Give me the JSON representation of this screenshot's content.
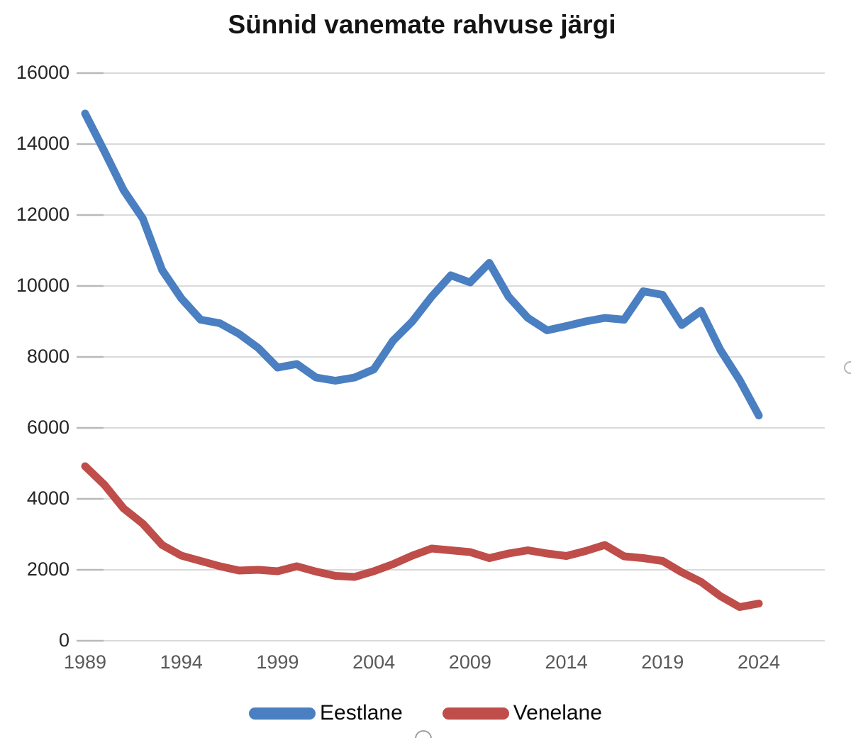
{
  "title": "Sünnid vanemate rahvuse järgi",
  "chart_data": {
    "type": "line",
    "title": "Sünnid vanemate rahvuse järgi",
    "x": [
      1989,
      1990,
      1991,
      1992,
      1993,
      1994,
      1995,
      1996,
      1997,
      1998,
      1999,
      2000,
      2001,
      2002,
      2003,
      2004,
      2005,
      2006,
      2007,
      2008,
      2009,
      2010,
      2011,
      2012,
      2013,
      2014,
      2015,
      2016,
      2017,
      2018,
      2019,
      2020,
      2021,
      2022,
      2023,
      2024
    ],
    "series": [
      {
        "name": "Eestlane",
        "color": "#4a7fc1",
        "values": [
          14860,
          13800,
          12700,
          11900,
          10450,
          9650,
          9050,
          8950,
          8650,
          8250,
          7700,
          7800,
          7420,
          7330,
          7420,
          7650,
          8460,
          9000,
          9700,
          10300,
          10100,
          10650,
          9700,
          9100,
          8750,
          8870,
          9000,
          9100,
          9050,
          9850,
          9750,
          8900,
          9300,
          8200,
          7350,
          6350
        ]
      },
      {
        "name": "Venelane",
        "color": "#bf4d49",
        "values": [
          4920,
          4400,
          3730,
          3300,
          2700,
          2400,
          2250,
          2100,
          1980,
          2000,
          1960,
          2100,
          1950,
          1830,
          1800,
          1960,
          2160,
          2400,
          2600,
          2550,
          2500,
          2330,
          2460,
          2550,
          2460,
          2390,
          2530,
          2700,
          2380,
          2330,
          2250,
          1930,
          1660,
          1260,
          950,
          1050
        ]
      }
    ],
    "xlabel": "",
    "ylabel": "",
    "ylim": [
      0,
      16000
    ],
    "y_ticks": [
      0,
      2000,
      4000,
      6000,
      8000,
      10000,
      12000,
      14000,
      16000
    ],
    "x_tick_labels": [
      "1989",
      "1994",
      "1999",
      "2004",
      "2009",
      "2014",
      "2019",
      "2024"
    ],
    "grid": "horizontal",
    "gridline_color": "#dadada",
    "tick_stub_color": "#b9b9b9",
    "legend_position": "bottom"
  }
}
